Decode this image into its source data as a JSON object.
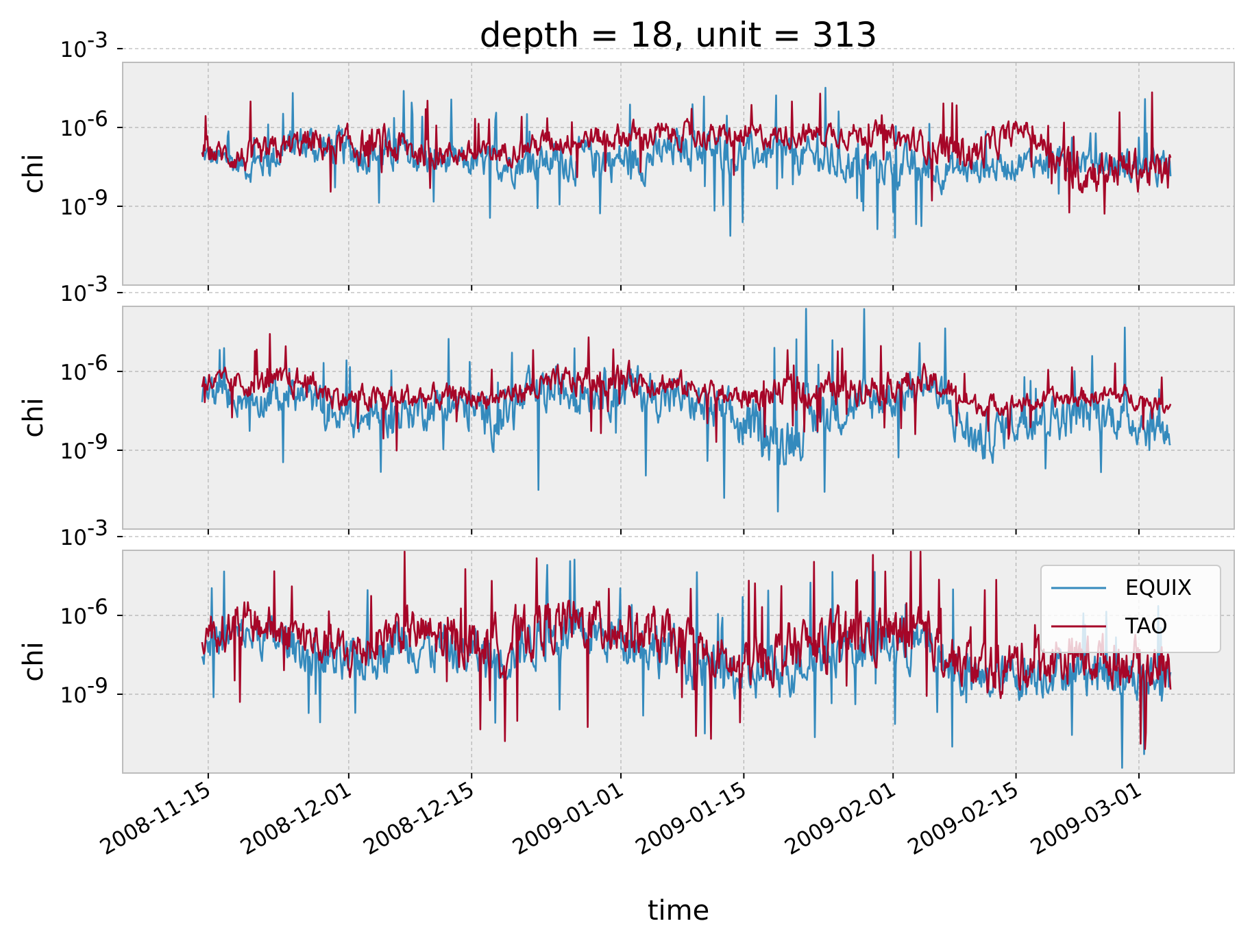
{
  "chart_data": {
    "type": "line",
    "title": "depth = 18, unit = 313",
    "xlabel": "time",
    "ylabel": "chi",
    "yscale": "log",
    "ylim": [
      1e-12,
      0.0003
    ],
    "y_ticks": [
      {
        "exp": -3,
        "label": "10",
        "sup": "-3"
      },
      {
        "exp": -6,
        "label": "10",
        "sup": "-6"
      },
      {
        "exp": -9,
        "label": "10",
        "sup": "-9"
      }
    ],
    "x_ticks": [
      "2008-11-15",
      "2008-12-01",
      "2008-12-15",
      "2009-01-01",
      "2009-01-15",
      "2009-02-01",
      "2009-02-15",
      "2009-03-01"
    ],
    "x_range_days": [
      0,
      117
    ],
    "x_tick_days": [
      6,
      22,
      36,
      53,
      67,
      84,
      98,
      112
    ],
    "grid": true,
    "legend": {
      "location": "upper-right",
      "entries": [
        "EQUIX",
        "TAO"
      ]
    },
    "series_colors": {
      "EQUIX": "#348abd",
      "TAO": "#a60628"
    },
    "panels": [
      {
        "name": "panel-1",
        "series": [
          {
            "name": "EQUIX",
            "days": [
              5.5,
              11,
              16.5,
              22,
              27.5,
              33,
              38.5,
              44,
              49.5,
              55,
              60.5,
              66,
              71.5,
              77,
              82.5,
              88,
              93.5,
              99,
              104.5,
              110,
              115.5
            ],
            "log10_mean": [
              -7.1,
              -7.5,
              -6.6,
              -6.9,
              -7.0,
              -7.3,
              -7.4,
              -7.3,
              -7.2,
              -7.3,
              -6.7,
              -7.0,
              -7.0,
              -7.3,
              -7.4,
              -7.6,
              -7.6,
              -7.3,
              -7.2,
              -7.5,
              -7.6
            ],
            "log10_spread": [
              0.5,
              0.6,
              0.8,
              0.8,
              0.8,
              0.6,
              0.7,
              0.7,
              0.9,
              0.8,
              0.8,
              0.8,
              0.7,
              0.8,
              0.8,
              0.8,
              0.6,
              0.6,
              0.6,
              0.7,
              0.7
            ]
          },
          {
            "name": "TAO",
            "days": [
              5.5,
              11,
              16.5,
              22,
              27.5,
              33,
              38.5,
              44,
              49.5,
              55,
              60.5,
              66,
              71.5,
              77,
              82.5,
              88,
              93.5,
              99,
              104.5,
              110,
              115.5
            ],
            "log10_mean": [
              -6.9,
              -7.2,
              -6.6,
              -6.7,
              -6.8,
              -7.0,
              -7.0,
              -6.6,
              -6.4,
              -6.3,
              -6.3,
              -6.4,
              -6.3,
              -6.2,
              -6.3,
              -6.7,
              -7.0,
              -6.0,
              -7.7,
              -7.5,
              -7.7
            ],
            "log10_spread": [
              0.5,
              0.6,
              0.6,
              0.7,
              0.8,
              0.5,
              0.5,
              0.5,
              0.5,
              0.6,
              0.5,
              0.5,
              0.5,
              0.5,
              0.5,
              0.6,
              0.8,
              0.4,
              0.9,
              0.8,
              0.9
            ]
          }
        ]
      },
      {
        "name": "panel-2",
        "series": [
          {
            "name": "EQUIX",
            "days": [
              5.5,
              11,
              16.5,
              22,
              27.5,
              33,
              38.5,
              44,
              49.5,
              55,
              60.5,
              66,
              71.5,
              77,
              82.5,
              88,
              93.5,
              99,
              104.5,
              110,
              115.5
            ],
            "log10_mean": [
              -6.8,
              -7.0,
              -6.9,
              -7.9,
              -7.6,
              -7.2,
              -7.8,
              -6.8,
              -6.6,
              -6.7,
              -7.1,
              -8.0,
              -8.5,
              -7.4,
              -7.1,
              -6.5,
              -8.7,
              -7.7,
              -7.7,
              -7.6,
              -8.4
            ],
            "log10_spread": [
              0.7,
              0.7,
              0.8,
              0.8,
              0.8,
              0.8,
              1.0,
              1.0,
              0.9,
              1.0,
              0.8,
              1.1,
              1.2,
              1.0,
              0.9,
              0.8,
              1.0,
              0.9,
              0.9,
              0.9,
              0.9
            ]
          },
          {
            "name": "TAO",
            "days": [
              5.5,
              11,
              16.5,
              22,
              27.5,
              33,
              38.5,
              44,
              49.5,
              55,
              60.5,
              66,
              71.5,
              77,
              82.5,
              88,
              93.5,
              99,
              104.5,
              110,
              115.5
            ],
            "log10_mean": [
              -6.4,
              -6.5,
              -6.4,
              -7.1,
              -7.0,
              -7.0,
              -7.0,
              -6.6,
              -6.3,
              -6.3,
              -6.6,
              -7.0,
              -6.8,
              -6.7,
              -6.5,
              -6.4,
              -7.3,
              -7.2,
              -7.0,
              -6.9,
              -7.3
            ],
            "log10_spread": [
              0.5,
              0.5,
              0.6,
              0.5,
              0.6,
              0.5,
              0.4,
              0.6,
              0.6,
              0.6,
              0.5,
              0.5,
              0.6,
              0.6,
              0.6,
              0.6,
              0.4,
              0.4,
              0.4,
              0.4,
              0.3
            ]
          }
        ]
      },
      {
        "name": "panel-3",
        "series": [
          {
            "name": "EQUIX",
            "days": [
              5.5,
              11,
              16.5,
              22,
              27.5,
              33,
              38.5,
              44,
              49.5,
              55,
              60.5,
              66,
              71.5,
              77,
              82.5,
              88,
              93.5,
              99,
              104.5,
              110,
              115.5
            ],
            "log10_mean": [
              -7.0,
              -6.7,
              -7.2,
              -8.0,
              -6.9,
              -7.3,
              -7.6,
              -6.8,
              -6.7,
              -7.0,
              -7.6,
              -8.4,
              -8.0,
              -7.2,
              -7.0,
              -7.2,
              -8.6,
              -8.2,
              -8.0,
              -8.2,
              -8.5
            ],
            "log10_spread": [
              0.9,
              0.8,
              0.9,
              1.0,
              1.0,
              1.0,
              1.1,
              1.0,
              1.0,
              1.0,
              1.1,
              1.0,
              1.1,
              1.0,
              1.0,
              1.0,
              1.0,
              1.0,
              0.9,
              1.0,
              1.0
            ]
          },
          {
            "name": "TAO",
            "days": [
              5.5,
              11,
              16.5,
              22,
              27.5,
              33,
              38.5,
              44,
              49.5,
              55,
              60.5,
              66,
              71.5,
              77,
              82.5,
              88,
              93.5,
              99,
              104.5,
              110,
              115.5
            ],
            "log10_mean": [
              -6.6,
              -6.3,
              -6.8,
              -7.6,
              -6.5,
              -6.9,
              -7.2,
              -6.4,
              -6.3,
              -6.6,
              -7.2,
              -8.0,
              -7.4,
              -6.9,
              -6.7,
              -6.9,
              -8.2,
              -7.8,
              -7.6,
              -7.7,
              -8.0
            ],
            "log10_spread": [
              0.9,
              0.9,
              0.9,
              1.0,
              1.0,
              1.0,
              1.1,
              1.1,
              1.1,
              1.1,
              1.1,
              1.0,
              1.1,
              1.1,
              1.1,
              1.0,
              1.1,
              1.1,
              1.0,
              1.0,
              1.0
            ]
          }
        ]
      }
    ]
  }
}
